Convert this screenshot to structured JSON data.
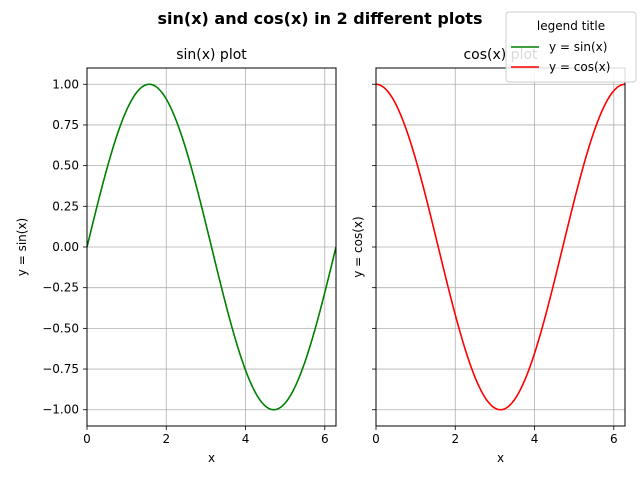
{
  "figure": {
    "suptitle": "sin(x) and cos(x) in 2 different plots"
  },
  "legend": {
    "title": "legend title",
    "placement": "top-right",
    "entries": [
      {
        "label": "y = sin(x)",
        "color": "#008000"
      },
      {
        "label": "y = cos(x)",
        "color": "#ff0000"
      }
    ]
  },
  "chart_data": [
    {
      "type": "line",
      "title": "sin(x) plot",
      "xlabel": "x",
      "ylabel": "y = sin(x)",
      "function": "sin",
      "xlim": [
        0,
        6.283
      ],
      "ylim": [
        -1.1,
        1.1
      ],
      "xticks": [
        0,
        2,
        4,
        6
      ],
      "xtick_labels": [
        "0",
        "2",
        "4",
        "6"
      ],
      "yticks": [
        1.0,
        0.75,
        0.5,
        0.25,
        0.0,
        -0.25,
        -0.5,
        -0.75,
        -1.0
      ],
      "ytick_labels": [
        "1.00",
        "0.75",
        "0.50",
        "0.25",
        "0.00",
        "−0.25",
        "−0.50",
        "−0.75",
        "−1.00"
      ],
      "grid": true,
      "series": [
        {
          "color": "#008000",
          "x": [
            0,
            0.349,
            0.698,
            1.047,
            1.396,
            1.745,
            2.094,
            2.443,
            2.793,
            3.142,
            3.491,
            3.84,
            4.189,
            4.538,
            4.887,
            5.236,
            5.585,
            5.934,
            6.283
          ],
          "y": [
            0,
            0.342,
            0.643,
            0.866,
            0.985,
            0.985,
            0.866,
            0.643,
            0.342,
            0,
            -0.342,
            -0.643,
            -0.866,
            -0.985,
            -0.985,
            -0.866,
            -0.643,
            -0.342,
            0
          ]
        }
      ]
    },
    {
      "type": "line",
      "title": "cos(x) plot",
      "xlabel": "x",
      "ylabel": "y = cos(x)",
      "function": "cos",
      "xlim": [
        0,
        6.283
      ],
      "ylim": [
        -1.1,
        1.1
      ],
      "xticks": [
        0,
        2,
        4,
        6
      ],
      "xtick_labels": [
        "0",
        "2",
        "4",
        "6"
      ],
      "yticks": [
        1.0,
        0.75,
        0.5,
        0.25,
        0.0,
        -0.25,
        -0.5,
        -0.75,
        -1.0
      ],
      "ytick_labels": [],
      "grid": true,
      "series": [
        {
          "color": "#ff0000",
          "x": [
            0,
            0.349,
            0.698,
            1.047,
            1.396,
            1.745,
            2.094,
            2.443,
            2.793,
            3.142,
            3.491,
            3.84,
            4.189,
            4.538,
            4.887,
            5.236,
            5.585,
            5.934,
            6.283
          ],
          "y": [
            1,
            0.94,
            0.766,
            0.5,
            0.174,
            -0.174,
            -0.5,
            -0.766,
            -0.94,
            -1,
            -0.94,
            -0.766,
            -0.5,
            -0.174,
            0.174,
            0.5,
            0.766,
            0.94,
            1
          ]
        }
      ]
    }
  ]
}
